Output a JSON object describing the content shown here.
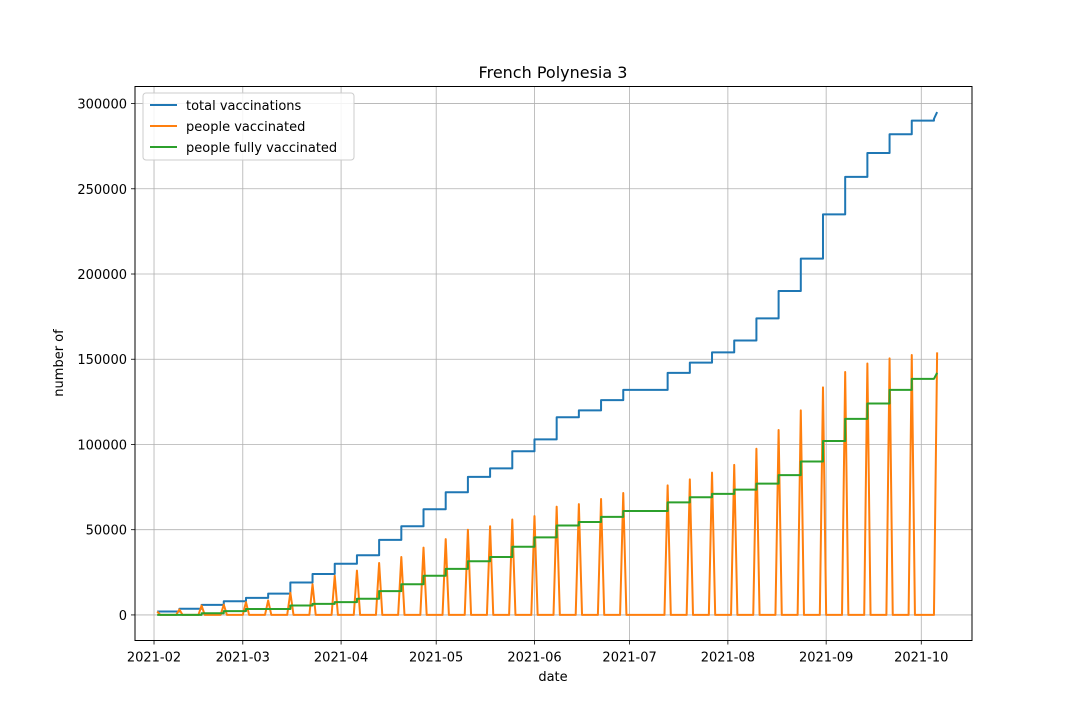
{
  "chart_data": {
    "type": "line",
    "title": "French Polynesia 3",
    "xlabel": "date",
    "ylabel": "number of",
    "xlim": [
      "2021-01-26",
      "2021-10-17"
    ],
    "ylim": [
      -15000,
      310000
    ],
    "grid": true,
    "legend_position": "top-left",
    "x_ticks": [
      "2021-02-01",
      "2021-03-01",
      "2021-04-01",
      "2021-05-01",
      "2021-06-01",
      "2021-07-01",
      "2021-08-01",
      "2021-09-01",
      "2021-10-01"
    ],
    "x_tick_labels": [
      "2021-02",
      "2021-03",
      "2021-04",
      "2021-05",
      "2021-06",
      "2021-07",
      "2021-08",
      "2021-09",
      "2021-10"
    ],
    "y_ticks": [
      0,
      50000,
      100000,
      150000,
      200000,
      250000,
      300000
    ],
    "y_tick_labels": [
      "0",
      "50000",
      "100000",
      "150000",
      "200000",
      "250000",
      "300000"
    ],
    "series": [
      {
        "name": "total vaccinations",
        "color": "#1f77b4",
        "steps": [
          [
            "2021-02-02",
            2000
          ],
          [
            "2021-02-09",
            3600
          ],
          [
            "2021-02-16",
            5900
          ],
          [
            "2021-02-23",
            8000
          ],
          [
            "2021-03-02",
            10000
          ],
          [
            "2021-03-09",
            12500
          ],
          [
            "2021-03-16",
            19000
          ],
          [
            "2021-03-23",
            24000
          ],
          [
            "2021-03-30",
            30000
          ],
          [
            "2021-04-06",
            35000
          ],
          [
            "2021-04-13",
            44000
          ],
          [
            "2021-04-20",
            52000
          ],
          [
            "2021-04-27",
            62000
          ],
          [
            "2021-05-04",
            72000
          ],
          [
            "2021-05-11",
            81000
          ],
          [
            "2021-05-18",
            86000
          ],
          [
            "2021-05-25",
            96000
          ],
          [
            "2021-06-01",
            103000
          ],
          [
            "2021-06-08",
            116000
          ],
          [
            "2021-06-15",
            120000
          ],
          [
            "2021-06-22",
            126000
          ],
          [
            "2021-06-29",
            132000
          ],
          [
            "2021-07-13",
            142000
          ],
          [
            "2021-07-20",
            148000
          ],
          [
            "2021-07-27",
            154000
          ],
          [
            "2021-08-03",
            161000
          ],
          [
            "2021-08-10",
            174000
          ],
          [
            "2021-08-17",
            190000
          ],
          [
            "2021-08-24",
            209000
          ],
          [
            "2021-08-31",
            235000
          ],
          [
            "2021-09-07",
            257000
          ],
          [
            "2021-09-14",
            271000
          ],
          [
            "2021-09-21",
            282000
          ],
          [
            "2021-09-28",
            290000
          ],
          [
            "2021-10-05",
            291000
          ]
        ],
        "final": [
          "2021-10-06",
          295000
        ]
      },
      {
        "name": "people vaccinated",
        "color": "#ff7f0e",
        "baseline": 0,
        "spikes": [
          [
            "2021-02-02",
            2000
          ],
          [
            "2021-02-09",
            3200
          ],
          [
            "2021-02-16",
            5500
          ],
          [
            "2021-02-23",
            6000
          ],
          [
            "2021-03-02",
            7500
          ],
          [
            "2021-03-09",
            8500
          ],
          [
            "2021-03-16",
            13000
          ],
          [
            "2021-03-23",
            18000
          ],
          [
            "2021-03-30",
            23000
          ],
          [
            "2021-04-06",
            26000
          ],
          [
            "2021-04-13",
            30500
          ],
          [
            "2021-04-20",
            34000
          ],
          [
            "2021-04-27",
            39500
          ],
          [
            "2021-05-04",
            44500
          ],
          [
            "2021-05-11",
            50000
          ],
          [
            "2021-05-18",
            52000
          ],
          [
            "2021-05-25",
            56000
          ],
          [
            "2021-06-01",
            58000
          ],
          [
            "2021-06-08",
            63500
          ],
          [
            "2021-06-15",
            65000
          ],
          [
            "2021-06-22",
            68000
          ],
          [
            "2021-06-29",
            71500
          ],
          [
            "2021-07-13",
            76000
          ],
          [
            "2021-07-20",
            79500
          ],
          [
            "2021-07-27",
            83500
          ],
          [
            "2021-08-03",
            88000
          ],
          [
            "2021-08-10",
            97500
          ],
          [
            "2021-08-17",
            108500
          ],
          [
            "2021-08-24",
            120000
          ],
          [
            "2021-08-31",
            133500
          ],
          [
            "2021-09-07",
            142500
          ],
          [
            "2021-09-14",
            147500
          ],
          [
            "2021-09-21",
            150500
          ],
          [
            "2021-09-28",
            152500
          ],
          [
            "2021-10-06",
            154000
          ]
        ]
      },
      {
        "name": "people fully vaccinated",
        "color": "#2ca02c",
        "steps": [
          [
            "2021-02-02",
            0
          ],
          [
            "2021-02-16",
            1000
          ],
          [
            "2021-02-23",
            2200
          ],
          [
            "2021-03-02",
            3500
          ],
          [
            "2021-03-16",
            5500
          ],
          [
            "2021-03-23",
            6500
          ],
          [
            "2021-03-30",
            7500
          ],
          [
            "2021-04-06",
            9500
          ],
          [
            "2021-04-13",
            14000
          ],
          [
            "2021-04-20",
            18000
          ],
          [
            "2021-04-27",
            23000
          ],
          [
            "2021-05-04",
            27000
          ],
          [
            "2021-05-11",
            31500
          ],
          [
            "2021-05-18",
            34000
          ],
          [
            "2021-05-25",
            40000
          ],
          [
            "2021-06-01",
            45500
          ],
          [
            "2021-06-08",
            52500
          ],
          [
            "2021-06-15",
            54500
          ],
          [
            "2021-06-22",
            57500
          ],
          [
            "2021-06-29",
            61000
          ],
          [
            "2021-07-13",
            66000
          ],
          [
            "2021-07-20",
            69000
          ],
          [
            "2021-07-27",
            71000
          ],
          [
            "2021-08-03",
            73500
          ],
          [
            "2021-08-10",
            77000
          ],
          [
            "2021-08-17",
            82000
          ],
          [
            "2021-08-24",
            90000
          ],
          [
            "2021-08-31",
            102000
          ],
          [
            "2021-09-07",
            115000
          ],
          [
            "2021-09-14",
            124000
          ],
          [
            "2021-09-21",
            132000
          ],
          [
            "2021-09-28",
            138500
          ],
          [
            "2021-10-05",
            138500
          ]
        ],
        "final": [
          "2021-10-06",
          142000
        ]
      }
    ]
  }
}
